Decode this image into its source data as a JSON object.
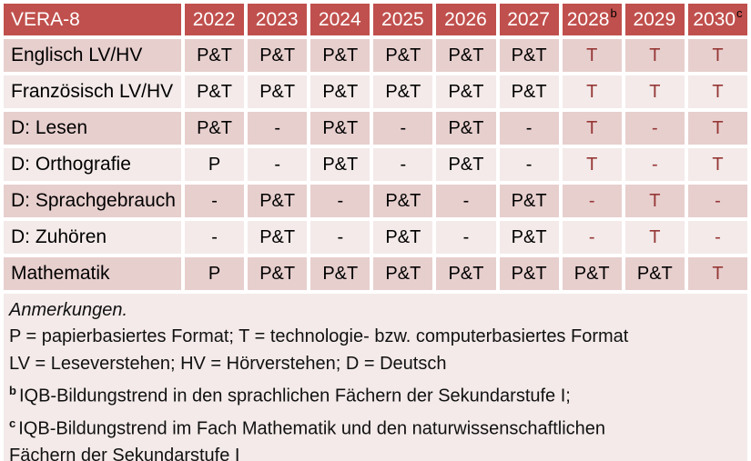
{
  "colors": {
    "header_bg": "#c0504d",
    "header_text": "#ffffff",
    "row_dark": "#e7cfce",
    "row_light": "#f3eae9",
    "notes_bg": "#f3eae9",
    "tech_red": "#953735",
    "body_text": "#000000"
  },
  "table": {
    "title": "VERA-8",
    "columns": [
      {
        "label": "2022",
        "sup": ""
      },
      {
        "label": "2023",
        "sup": ""
      },
      {
        "label": "2024",
        "sup": ""
      },
      {
        "label": "2025",
        "sup": ""
      },
      {
        "label": "2026",
        "sup": ""
      },
      {
        "label": "2027",
        "sup": ""
      },
      {
        "label": "2028",
        "sup": "b"
      },
      {
        "label": "2029",
        "sup": ""
      },
      {
        "label": "2030",
        "sup": "c"
      }
    ],
    "rows": [
      {
        "label": "Englisch LV/HV",
        "cells": [
          {
            "text": "P&T"
          },
          {
            "text": "P&T"
          },
          {
            "text": "P&T"
          },
          {
            "text": "P&T"
          },
          {
            "text": "P&T"
          },
          {
            "text": "P&T"
          },
          {
            "text": "T",
            "red": true
          },
          {
            "text": "T",
            "red": true
          },
          {
            "text": "T",
            "red": true
          }
        ]
      },
      {
        "label": "Französisch LV/HV",
        "cells": [
          {
            "text": "P&T"
          },
          {
            "text": "P&T"
          },
          {
            "text": "P&T"
          },
          {
            "text": "P&T"
          },
          {
            "text": "P&T"
          },
          {
            "text": "P&T"
          },
          {
            "text": "T",
            "red": true
          },
          {
            "text": "T",
            "red": true
          },
          {
            "text": "T",
            "red": true
          }
        ]
      },
      {
        "label": "D: Lesen",
        "cells": [
          {
            "text": "P&T"
          },
          {
            "text": "-"
          },
          {
            "text": "P&T"
          },
          {
            "text": "-"
          },
          {
            "text": "P&T"
          },
          {
            "text": "-"
          },
          {
            "text": "T",
            "red": true
          },
          {
            "text": "-",
            "red": true
          },
          {
            "text": "T",
            "red": true
          }
        ]
      },
      {
        "label": "D: Orthografie",
        "cells": [
          {
            "text": "P"
          },
          {
            "text": "-"
          },
          {
            "text": "P&T"
          },
          {
            "text": "-"
          },
          {
            "text": "P&T"
          },
          {
            "text": "-"
          },
          {
            "text": "T",
            "red": true
          },
          {
            "text": "-",
            "red": true
          },
          {
            "text": "T",
            "red": true
          }
        ]
      },
      {
        "label": "D: Sprachgebrauch",
        "cells": [
          {
            "text": "-"
          },
          {
            "text": "P&T"
          },
          {
            "text": "-"
          },
          {
            "text": "P&T"
          },
          {
            "text": "-"
          },
          {
            "text": "P&T"
          },
          {
            "text": "-",
            "red": true
          },
          {
            "text": "T",
            "red": true
          },
          {
            "text": "-",
            "red": true
          }
        ]
      },
      {
        "label": "D: Zuhören",
        "cells": [
          {
            "text": "-"
          },
          {
            "text": "P&T"
          },
          {
            "text": "-"
          },
          {
            "text": "P&T"
          },
          {
            "text": "-"
          },
          {
            "text": "P&T"
          },
          {
            "text": "-",
            "red": true
          },
          {
            "text": "T",
            "red": true
          },
          {
            "text": "-",
            "red": true
          }
        ]
      },
      {
        "label": "Mathematik",
        "cells": [
          {
            "text": "P"
          },
          {
            "text": "P&T"
          },
          {
            "text": "P&T"
          },
          {
            "text": "P&T"
          },
          {
            "text": "P&T"
          },
          {
            "text": "P&T"
          },
          {
            "text": "P&T"
          },
          {
            "text": "P&T"
          },
          {
            "text": "T",
            "red": true
          }
        ]
      }
    ]
  },
  "notes": {
    "title": "Anmerkungen.",
    "lines": [
      {
        "sup": "",
        "text": "P = papierbasiertes Format; T = technologie- bzw. computerbasiertes Format"
      },
      {
        "sup": "",
        "text": "LV = Leseverstehen; HV = Hörverstehen; D = Deutsch"
      },
      {
        "sup": "b",
        "text": "IQB-Bildungstrend in den sprachlichen Fächern der Sekundarstufe I;"
      },
      {
        "sup": "c",
        "text": "IQB-Bildungstrend im Fach Mathematik und den naturwissenschaftlichen Fächern der Sekundarstufe I"
      }
    ]
  }
}
